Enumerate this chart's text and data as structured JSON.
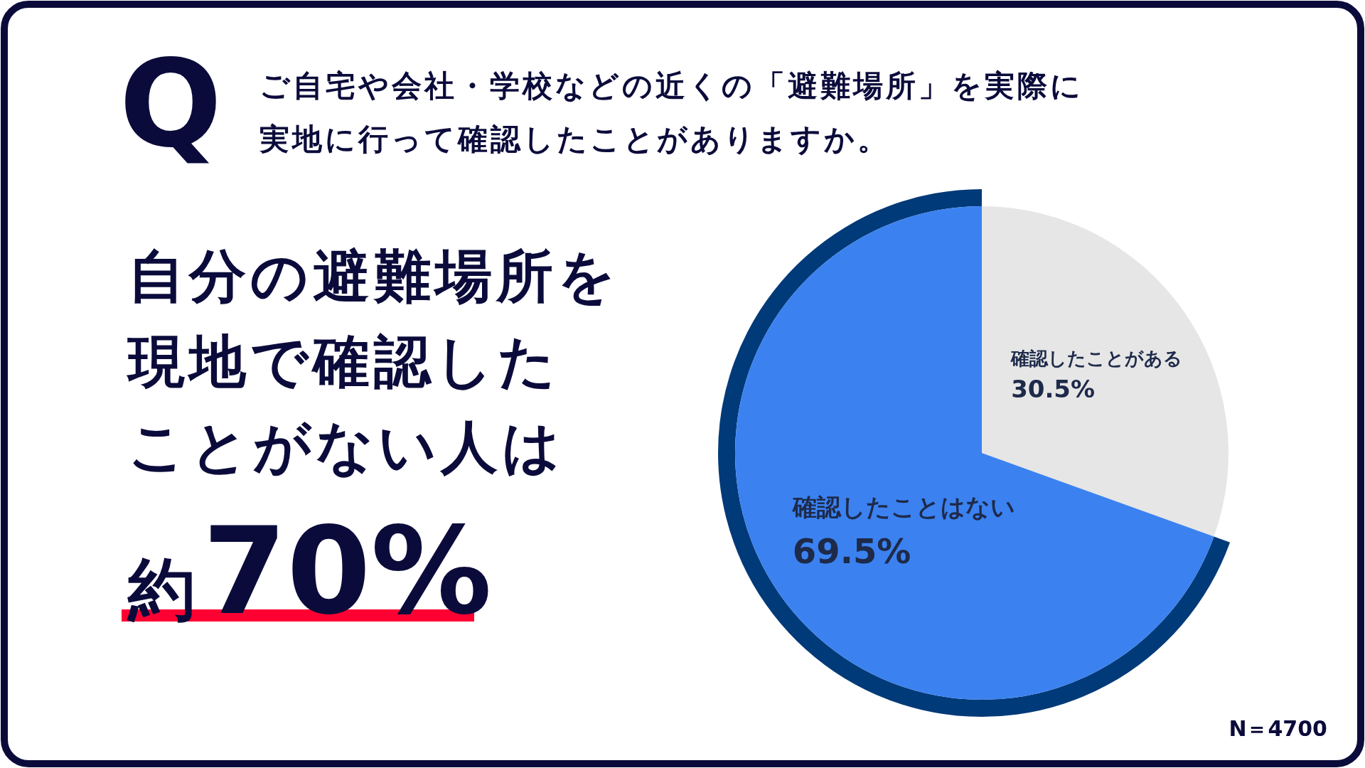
{
  "chart_data": {
    "type": "pie",
    "title": "ご自宅や会社・学校などの近くの「避難場所」を実際に実地に行って確認したことがありますか。",
    "categories": [
      "確認したことがある",
      "確認したことはない"
    ],
    "values": [
      30.5,
      69.5
    ],
    "colors": [
      "#e6e6e6",
      "#3b82f0"
    ],
    "value_labels": [
      "30.5%",
      "69.5%"
    ],
    "annotations": [
      "Q",
      "自分の避難場所を現地で確認したことがない人は約70%",
      "N＝4700"
    ]
  }
}
